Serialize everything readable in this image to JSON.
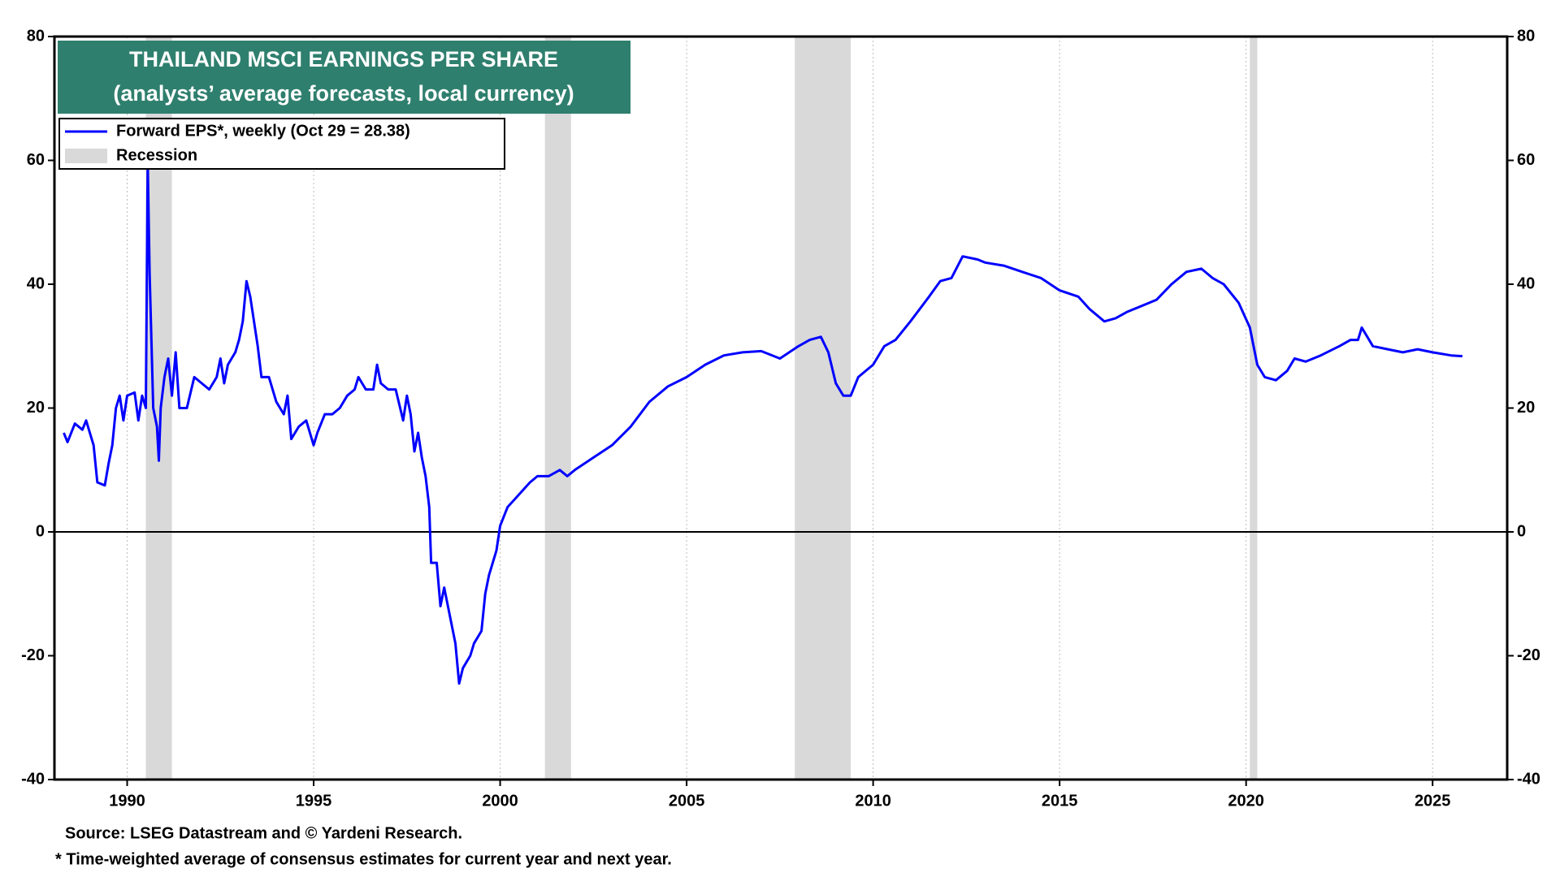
{
  "chart_data": {
    "type": "line",
    "title": "THAILAND MSCI EARNINGS PER SHARE",
    "subtitle": "(analysts’ average forecasts, local currency)",
    "source": "Source: LSEG Datastream and © Yardeni Research.",
    "note": "* Time-weighted average of consensus estimates for current year and next year.",
    "recession_label": "Recession",
    "recession_color": "#d9d9d9",
    "recessions": [
      [
        1990.5,
        1991.2
      ],
      [
        2001.2,
        2001.9
      ],
      [
        2007.9,
        2009.4
      ],
      [
        2020.1,
        2020.3
      ]
    ],
    "x": [
      1988.3,
      1988.4,
      1988.6,
      1988.8,
      1988.9,
      1989.1,
      1989.2,
      1989.4,
      1989.5,
      1989.6,
      1989.7,
      1989.8,
      1989.9,
      1990.0,
      1990.2,
      1990.3,
      1990.4,
      1990.5,
      1990.55,
      1990.6,
      1990.7,
      1990.8,
      1990.85,
      1990.9,
      1991.0,
      1991.1,
      1991.2,
      1991.3,
      1991.4,
      1991.6,
      1991.8,
      1992.0,
      1992.2,
      1992.4,
      1992.5,
      1992.6,
      1992.7,
      1992.9,
      1993.0,
      1993.1,
      1993.2,
      1993.3,
      1993.5,
      1993.6,
      1993.8,
      1994.0,
      1994.2,
      1994.3,
      1994.4,
      1994.6,
      1994.8,
      1995.0,
      1995.1,
      1995.3,
      1995.5,
      1995.7,
      1995.9,
      1996.1,
      1996.2,
      1996.4,
      1996.6,
      1996.7,
      1996.8,
      1997.0,
      1997.2,
      1997.4,
      1997.5,
      1997.6,
      1997.7,
      1997.8,
      1997.9,
      1998.0,
      1998.1,
      1998.15,
      1998.3,
      1998.4,
      1998.5,
      1998.6,
      1998.7,
      1998.8,
      1998.9,
      1999.0,
      1999.2,
      1999.3,
      1999.5,
      1999.6,
      1999.7,
      1999.9,
      2000.0,
      2000.2,
      2000.5,
      2000.8,
      2001.0,
      2001.3,
      2001.6,
      2001.8,
      2002.0,
      2002.5,
      2003.0,
      2003.5,
      2004.0,
      2004.5,
      2005.0,
      2005.5,
      2006.0,
      2006.5,
      2007.0,
      2007.5,
      2008.0,
      2008.3,
      2008.6,
      2008.8,
      2009.0,
      2009.2,
      2009.4,
      2009.6,
      2010.0,
      2010.3,
      2010.6,
      2011.0,
      2011.5,
      2011.8,
      2012.1,
      2012.4,
      2012.8,
      2013.0,
      2013.5,
      2014.0,
      2014.5,
      2015.0,
      2015.5,
      2015.8,
      2016.2,
      2016.5,
      2016.8,
      2017.2,
      2017.6,
      2018.0,
      2018.4,
      2018.8,
      2019.1,
      2019.4,
      2019.8,
      2020.1,
      2020.3,
      2020.5,
      2020.8,
      2021.1,
      2021.3,
      2021.6,
      2022.0,
      2022.5,
      2022.8,
      2023.0,
      2023.1,
      2023.4,
      2023.8,
      2024.2,
      2024.6,
      2025.0,
      2025.5,
      2025.8
    ],
    "series": [
      {
        "name": "Forward EPS*, weekly (Oct 29 = 28.38)",
        "color": "#0000ff",
        "values": [
          16,
          14.5,
          17.5,
          16.5,
          18,
          14,
          8,
          7.5,
          11,
          14,
          20,
          22,
          18,
          22,
          22.5,
          18,
          22,
          20,
          60,
          42,
          20,
          17,
          11.5,
          20,
          25,
          28,
          22,
          29,
          20,
          20,
          25,
          24,
          23,
          25,
          28,
          24,
          27,
          29,
          31,
          34,
          40.5,
          38,
          30,
          25,
          25,
          21,
          19,
          22,
          15,
          17,
          18,
          14,
          16,
          19,
          19,
          20,
          22,
          23,
          25,
          23,
          23,
          27,
          24,
          23,
          23,
          18,
          22,
          19,
          13,
          16,
          12,
          9,
          4,
          -5,
          -5,
          -12,
          -9,
          -12,
          -15,
          -18,
          -24.5,
          -22,
          -20,
          -18,
          -16,
          -10,
          -7,
          -3,
          1,
          4,
          6,
          8,
          9,
          9,
          10,
          9,
          10,
          12,
          14,
          17,
          21,
          23.5,
          25,
          27,
          28.5,
          29,
          29.2,
          28,
          30,
          31,
          31.5,
          29,
          24,
          22,
          22,
          25,
          27,
          30,
          31,
          34,
          38,
          40.5,
          41,
          44.5,
          44,
          43.5,
          43,
          42,
          41,
          39,
          38,
          36,
          34,
          34.5,
          35.5,
          36.5,
          37.5,
          40,
          42,
          42.5,
          41,
          40,
          37,
          33,
          27,
          25,
          24.5,
          26,
          28,
          27.5,
          28.5,
          30,
          31,
          31,
          33,
          30,
          29.5,
          29,
          29.5,
          29,
          28.5,
          28.38
        ]
      }
    ],
    "xlim": [
      1988.05,
      2027.0
    ],
    "xticks": [
      1990,
      1995,
      2000,
      2005,
      2010,
      2015,
      2020,
      2025
    ],
    "ylim": [
      -40,
      80
    ],
    "yticks": [
      -40,
      -20,
      0,
      20,
      40,
      60,
      80
    ],
    "zero_line": true,
    "grid": "x"
  }
}
